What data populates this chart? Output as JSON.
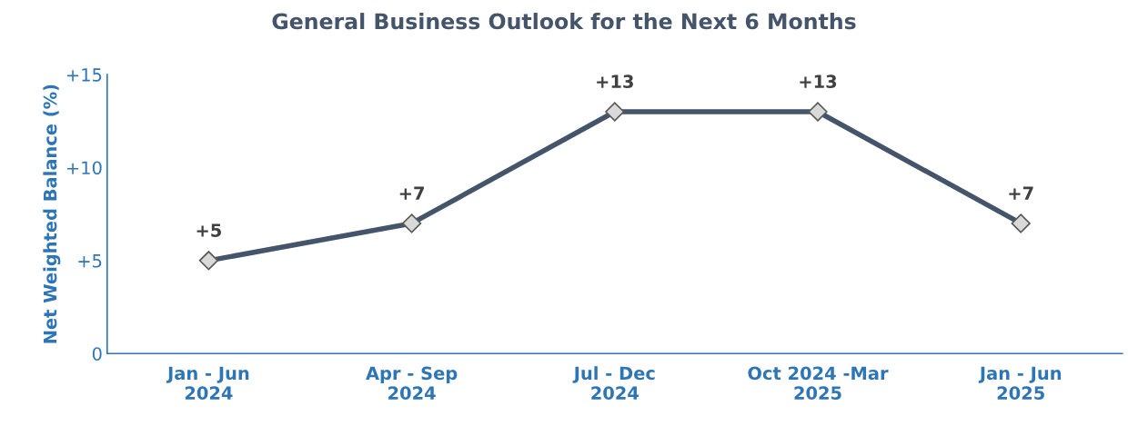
{
  "chart_data": {
    "type": "line",
    "title": "General Business Outlook for the Next 6 Months",
    "ylabel": "Net Weighted Balance (%)",
    "categories": [
      "Jan - Jun\n2024",
      "Apr - Sep\n2024",
      "Jul - Dec\n2024",
      "Oct 2024 -Mar\n2025",
      "Jan - Jun\n2025"
    ],
    "series": [
      {
        "color": "#44546a",
        "values": [
          5,
          7,
          13,
          13,
          7
        ],
        "value_labels": [
          "+5",
          "+7",
          "+13",
          "+13",
          "+7"
        ]
      }
    ],
    "ylim": [
      0,
      15
    ],
    "yticks": [
      {
        "value": 0,
        "label": "0"
      },
      {
        "value": 5,
        "label": "+5"
      },
      {
        "value": 10,
        "label": "+10"
      },
      {
        "value": 15,
        "label": "+15"
      }
    ],
    "marker": "diamond",
    "line_style": "solid",
    "grid": false
  }
}
